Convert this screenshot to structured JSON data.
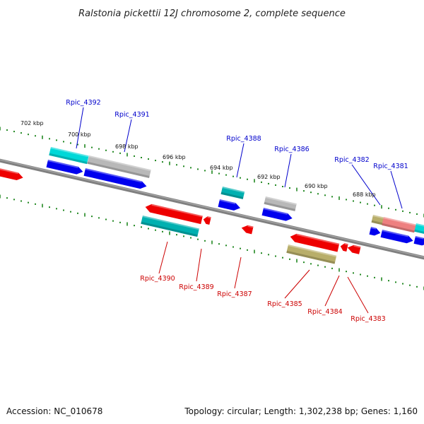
{
  "title": "Ralstonia pickettii 12J chromosome 2, complete sequence",
  "footer": {
    "accession": "Accession: NC_010678",
    "topology": "Topology: circular; Length: 1,302,238 bp; Genes: 1,160"
  },
  "colors": {
    "forward_label": "#0000cc",
    "reverse_label": "#cc0000",
    "backbone": "#808080",
    "tick": "#228822",
    "blue": "#0000ee",
    "red": "#ee0000",
    "cyan": "#00d8d8",
    "teal": "#00b0b0",
    "gray": "#b8b8b8",
    "olive": "#b8ae6a",
    "pink": "#ee8080"
  },
  "scale_labels": [
    "702 kbp",
    "700 kbp",
    "698 kbp",
    "696 kbp",
    "694 kbp",
    "692 kbp",
    "690 kbp",
    "688 kbp"
  ],
  "forward_genes": [
    "Rpic_4392",
    "Rpic_4391",
    "Rpic_4388",
    "Rpic_4386",
    "Rpic_4382",
    "Rpic_4381"
  ],
  "reverse_genes": [
    "Rpic_4390",
    "Rpic_4389",
    "Rpic_4387",
    "Rpic_4385",
    "Rpic_4384",
    "Rpic_4383"
  ]
}
